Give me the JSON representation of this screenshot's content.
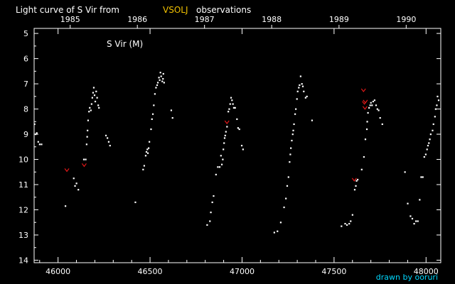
{
  "header": {
    "title_prefix": "Light curve of S Vir from",
    "title_source": "VSOLJ",
    "title_suffix": "observations"
  },
  "footer": {
    "credit": "drawn by ooruri"
  },
  "colors": {
    "background": "#000000",
    "axis": "#ffffff",
    "visual_points": "#ffffff",
    "fainter_than_marks": "#e01818",
    "source_highlight": "#f2c200",
    "credit": "#00d8ff"
  },
  "chart_data": {
    "type": "scatter",
    "title": "S Vir (M)",
    "x_axis": {
      "range": [
        45870,
        48080
      ],
      "ticks": [
        46000,
        46500,
        47000,
        47500,
        48000
      ],
      "labels": [
        "46000",
        "46500",
        "47000",
        "47500",
        "48000"
      ]
    },
    "y_axis": {
      "range": [
        14.1,
        4.8
      ],
      "inverted": true,
      "ticks": [
        5,
        6,
        7,
        8,
        9,
        10,
        11,
        12,
        13,
        14
      ],
      "labels": [
        "5",
        "6",
        "7",
        "8",
        "9",
        "10",
        "11",
        "12",
        "13",
        "14"
      ]
    },
    "top_axis": {
      "labels": [
        "1985",
        "1986",
        "1987",
        "1988",
        "1989",
        "1990"
      ],
      "positions": [
        46066,
        46431,
        46796,
        47161,
        47527,
        47892
      ]
    },
    "grid": false,
    "series": [
      {
        "marker": "dot",
        "color": "#ffffff",
        "points": [
          [
            45872,
            8.6
          ],
          [
            45878,
            9.0
          ],
          [
            45884,
            8.95
          ],
          [
            45892,
            9.3
          ],
          [
            45900,
            9.4
          ],
          [
            45910,
            9.4
          ],
          [
            46040,
            11.85
          ],
          [
            46085,
            10.75
          ],
          [
            46092,
            11.05
          ],
          [
            46100,
            10.95
          ],
          [
            46110,
            11.2
          ],
          [
            46140,
            10.0
          ],
          [
            46150,
            10.0
          ],
          [
            46155,
            9.4
          ],
          [
            46158,
            9.1
          ],
          [
            46160,
            8.85
          ],
          [
            46163,
            8.45
          ],
          [
            46168,
            8.1
          ],
          [
            46172,
            7.95
          ],
          [
            46178,
            8.05
          ],
          [
            46182,
            7.8
          ],
          [
            46186,
            7.55
          ],
          [
            46190,
            7.35
          ],
          [
            46194,
            7.15
          ],
          [
            46198,
            7.45
          ],
          [
            46202,
            7.7
          ],
          [
            46207,
            7.3
          ],
          [
            46212,
            7.55
          ],
          [
            46218,
            7.85
          ],
          [
            46222,
            7.95
          ],
          [
            46260,
            9.05
          ],
          [
            46268,
            9.15
          ],
          [
            46275,
            9.3
          ],
          [
            46282,
            9.45
          ],
          [
            46420,
            11.7
          ],
          [
            46462,
            10.4
          ],
          [
            46468,
            10.25
          ],
          [
            46476,
            9.85
          ],
          [
            46480,
            9.7
          ],
          [
            46485,
            9.6
          ],
          [
            46488,
            9.75
          ],
          [
            46492,
            9.55
          ],
          [
            46496,
            9.3
          ],
          [
            46505,
            8.8
          ],
          [
            46510,
            8.4
          ],
          [
            46515,
            8.2
          ],
          [
            46520,
            7.85
          ],
          [
            46526,
            7.4
          ],
          [
            46532,
            7.15
          ],
          [
            46538,
            7.05
          ],
          [
            46542,
            6.95
          ],
          [
            46548,
            6.75
          ],
          [
            46552,
            6.85
          ],
          [
            46556,
            6.55
          ],
          [
            46560,
            6.7
          ],
          [
            46566,
            6.9
          ],
          [
            46570,
            6.8
          ],
          [
            46572,
            6.6
          ],
          [
            46576,
            6.95
          ],
          [
            46615,
            8.05
          ],
          [
            46622,
            8.35
          ],
          [
            46810,
            12.6
          ],
          [
            46825,
            12.45
          ],
          [
            46830,
            12.1
          ],
          [
            46838,
            11.7
          ],
          [
            46845,
            11.45
          ],
          [
            46858,
            10.6
          ],
          [
            46868,
            10.3
          ],
          [
            46878,
            10.3
          ],
          [
            46885,
            9.85
          ],
          [
            46890,
            10.2
          ],
          [
            46895,
            10.0
          ],
          [
            46898,
            9.6
          ],
          [
            46902,
            9.35
          ],
          [
            46905,
            9.15
          ],
          [
            46908,
            9.05
          ],
          [
            46912,
            8.9
          ],
          [
            46918,
            8.7
          ],
          [
            46925,
            8.1
          ],
          [
            46930,
            8.0
          ],
          [
            46935,
            7.8
          ],
          [
            46940,
            7.55
          ],
          [
            46945,
            7.65
          ],
          [
            46950,
            7.8
          ],
          [
            46955,
            7.95
          ],
          [
            46962,
            7.95
          ],
          [
            46972,
            8.4
          ],
          [
            46978,
            8.75
          ],
          [
            46985,
            8.8
          ],
          [
            46998,
            9.45
          ],
          [
            47005,
            9.6
          ],
          [
            47175,
            12.9
          ],
          [
            47192,
            12.85
          ],
          [
            47210,
            12.5
          ],
          [
            47228,
            11.9
          ],
          [
            47238,
            11.55
          ],
          [
            47245,
            11.05
          ],
          [
            47252,
            10.7
          ],
          [
            47258,
            10.1
          ],
          [
            47262,
            9.8
          ],
          [
            47265,
            9.55
          ],
          [
            47270,
            9.25
          ],
          [
            47275,
            9.0
          ],
          [
            47278,
            8.85
          ],
          [
            47282,
            8.6
          ],
          [
            47288,
            8.2
          ],
          [
            47292,
            8.0
          ],
          [
            47298,
            7.6
          ],
          [
            47302,
            7.3
          ],
          [
            47308,
            7.15
          ],
          [
            47312,
            7.05
          ],
          [
            47318,
            6.7
          ],
          [
            47325,
            7.0
          ],
          [
            47330,
            7.1
          ],
          [
            47335,
            7.3
          ],
          [
            47345,
            7.55
          ],
          [
            47352,
            7.5
          ],
          [
            47380,
            8.45
          ],
          [
            47540,
            12.65
          ],
          [
            47560,
            12.55
          ],
          [
            47570,
            12.6
          ],
          [
            47582,
            12.55
          ],
          [
            47590,
            12.45
          ],
          [
            47600,
            12.2
          ],
          [
            47612,
            11.2
          ],
          [
            47618,
            11.05
          ],
          [
            47622,
            10.85
          ],
          [
            47628,
            10.8
          ],
          [
            47650,
            10.4
          ],
          [
            47662,
            9.9
          ],
          [
            47670,
            9.2
          ],
          [
            47678,
            8.8
          ],
          [
            47680,
            8.5
          ],
          [
            47684,
            8.15
          ],
          [
            47690,
            7.95
          ],
          [
            47696,
            7.85
          ],
          [
            47700,
            7.75
          ],
          [
            47706,
            7.85
          ],
          [
            47712,
            7.7
          ],
          [
            47720,
            7.65
          ],
          [
            47728,
            7.85
          ],
          [
            47735,
            8.0
          ],
          [
            47742,
            8.05
          ],
          [
            47750,
            8.35
          ],
          [
            47762,
            8.6
          ],
          [
            47885,
            10.5
          ],
          [
            47900,
            11.75
          ],
          [
            47915,
            12.25
          ],
          [
            47925,
            12.35
          ],
          [
            47935,
            12.55
          ],
          [
            47945,
            12.45
          ],
          [
            47955,
            12.45
          ],
          [
            47965,
            11.6
          ],
          [
            47973,
            10.7
          ],
          [
            47982,
            10.7
          ],
          [
            47990,
            9.9
          ],
          [
            47998,
            9.8
          ],
          [
            48005,
            9.6
          ],
          [
            48010,
            9.45
          ],
          [
            48015,
            9.35
          ],
          [
            48020,
            9.2
          ],
          [
            48025,
            9.0
          ],
          [
            48035,
            8.85
          ],
          [
            48040,
            8.6
          ],
          [
            48048,
            8.3
          ],
          [
            48052,
            8.0
          ],
          [
            48058,
            7.85
          ],
          [
            48062,
            7.5
          ],
          [
            48068,
            7.65
          ]
        ]
      },
      {
        "marker": "fainter-than",
        "color": "#e01818",
        "points": [
          [
            46048,
            10.42
          ],
          [
            46142,
            10.22
          ],
          [
            46918,
            8.52
          ],
          [
            47610,
            10.8
          ],
          [
            47660,
            7.25
          ],
          [
            47665,
            7.75
          ],
          [
            47668,
            7.95
          ],
          [
            47670,
            7.7
          ]
        ]
      }
    ]
  }
}
